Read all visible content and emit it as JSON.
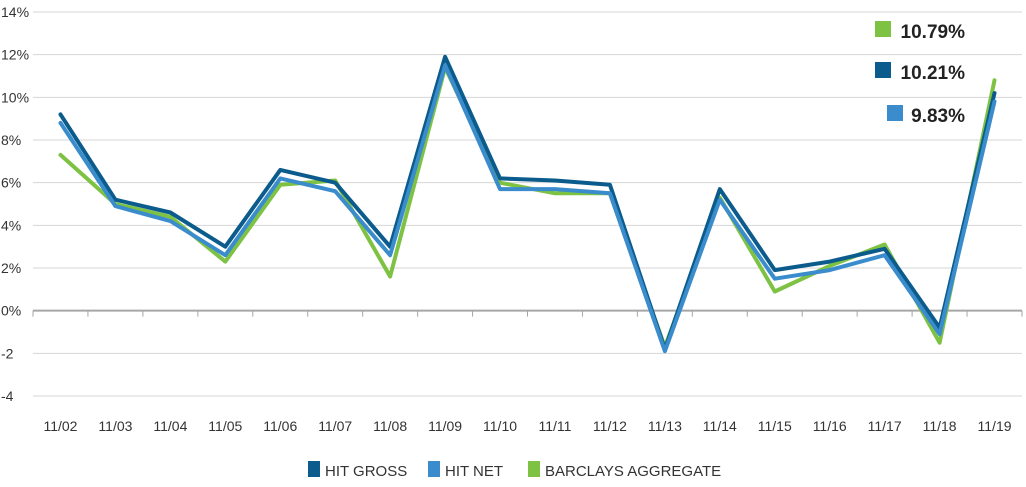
{
  "chart_data": {
    "type": "line",
    "title": "",
    "xlabel": "",
    "ylabel": "",
    "categories": [
      "11/02",
      "11/03",
      "11/04",
      "11/05",
      "11/06",
      "11/07",
      "11/08",
      "11/09",
      "11/10",
      "11/11",
      "11/12",
      "11/13",
      "11/14",
      "11/15",
      "11/16",
      "11/17",
      "11/18",
      "11/19"
    ],
    "y_ticks": [
      {
        "value": 14,
        "label": "14%"
      },
      {
        "value": 12,
        "label": "12%"
      },
      {
        "value": 10,
        "label": "10%"
      },
      {
        "value": 8,
        "label": "8%"
      },
      {
        "value": 6,
        "label": "6%"
      },
      {
        "value": 4,
        "label": "4%"
      },
      {
        "value": 2,
        "label": "2%"
      },
      {
        "value": 0,
        "label": "0%"
      },
      {
        "value": -2,
        "label": "-2"
      },
      {
        "value": -4,
        "label": "-4"
      }
    ],
    "ylim": [
      -4,
      14
    ],
    "grid": "horizontal",
    "legend_position": "bottom-center",
    "series": [
      {
        "name": "BARCLAYS AGGREGATE",
        "color": "#7dc243",
        "values": [
          7.3,
          5.0,
          4.4,
          2.3,
          5.9,
          6.1,
          1.6,
          11.4,
          6.0,
          5.5,
          5.5,
          -1.7,
          5.3,
          0.9,
          2.1,
          3.1,
          -1.5,
          10.8
        ]
      },
      {
        "name": "HIT GROSS",
        "color": "#0b5c8c",
        "values": [
          9.2,
          5.2,
          4.6,
          3.0,
          6.6,
          6.0,
          3.0,
          11.9,
          6.2,
          6.1,
          5.9,
          -1.8,
          5.7,
          1.9,
          2.3,
          2.9,
          -0.8,
          10.2
        ]
      },
      {
        "name": "HIT NET",
        "color": "#3a8ccc",
        "values": [
          8.8,
          4.9,
          4.2,
          2.6,
          6.2,
          5.6,
          2.6,
          11.5,
          5.7,
          5.7,
          5.5,
          -1.9,
          5.2,
          1.5,
          1.9,
          2.6,
          -1.1,
          9.8
        ]
      }
    ],
    "legend": [
      {
        "label": "HIT GROSS",
        "color": "#0b5c8c"
      },
      {
        "label": "HIT NET",
        "color": "#3a8ccc"
      },
      {
        "label": "BARCLAYS AGGREGATE",
        "color": "#7dc243"
      }
    ],
    "callouts": [
      {
        "label": "10.79%",
        "color": "#7dc243"
      },
      {
        "label": "10.21%",
        "color": "#0b5c8c"
      },
      {
        "label": "9.83%",
        "color": "#3a8ccc"
      }
    ]
  }
}
